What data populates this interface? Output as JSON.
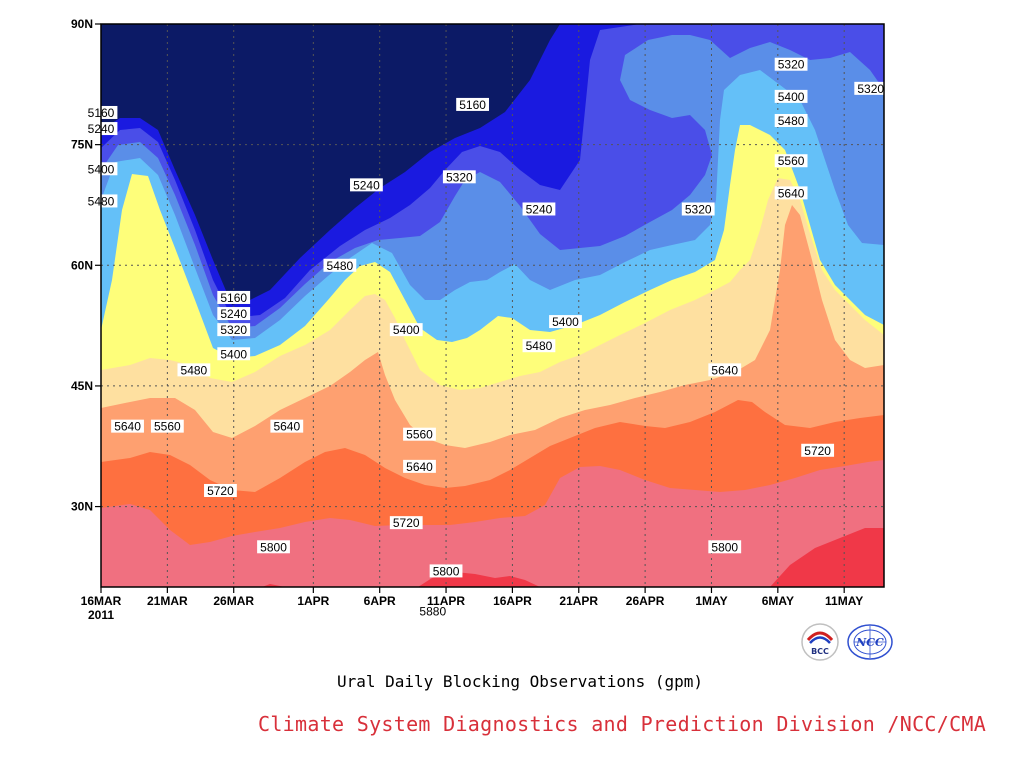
{
  "chart_data": {
    "type": "heatmap",
    "subtype": "time-latitude filled contour",
    "title": "Ural Daily Blocking Observations (gpm)",
    "x_ticks": [
      "16MAR",
      "21MAR",
      "26MAR",
      "1APR",
      "6APR",
      "11APR",
      "16APR",
      "21APR",
      "26APR",
      "1MAY",
      "6MAY",
      "11MAY"
    ],
    "x_year_label": "2011",
    "y_ticks": [
      "90N",
      "75N",
      "60N",
      "45N",
      "30N"
    ],
    "ylim": [
      20,
      90
    ],
    "xlim": [
      "2011-03-16",
      "2011-05-14"
    ],
    "grid": true,
    "contour_levels": [
      5160,
      5240,
      5320,
      5400,
      5480,
      5560,
      5640,
      5720,
      5800,
      5880
    ],
    "colors": [
      "#0c1a66",
      "#1a1ae0",
      "#4a4ee8",
      "#5a8ee8",
      "#64c0f8",
      "#fefe7a",
      "#fee0a0",
      "#fea070",
      "#fe7040",
      "#f07080",
      "#f03848"
    ],
    "contour_labels": [
      {
        "value": "5160",
        "date": "2011-03-16",
        "lat": 79
      },
      {
        "value": "5240",
        "date": "2011-03-16",
        "lat": 77
      },
      {
        "value": "5400",
        "date": "2011-03-16",
        "lat": 72
      },
      {
        "value": "5480",
        "date": "2011-03-16",
        "lat": 68
      },
      {
        "value": "5640",
        "date": "2011-03-18",
        "lat": 40
      },
      {
        "value": "5160",
        "date": "2011-03-26",
        "lat": 56
      },
      {
        "value": "5240",
        "date": "2011-03-26",
        "lat": 54
      },
      {
        "value": "5320",
        "date": "2011-03-26",
        "lat": 52
      },
      {
        "value": "5400",
        "date": "2011-03-26",
        "lat": 49
      },
      {
        "value": "5480",
        "date": "2011-03-23",
        "lat": 47
      },
      {
        "value": "5560",
        "date": "2011-03-21",
        "lat": 40
      },
      {
        "value": "5640",
        "date": "2011-03-30",
        "lat": 40
      },
      {
        "value": "5720",
        "date": "2011-03-25",
        "lat": 32
      },
      {
        "value": "5800",
        "date": "2011-03-29",
        "lat": 25
      },
      {
        "value": "5480",
        "date": "2011-04-03",
        "lat": 60
      },
      {
        "value": "5240",
        "date": "2011-04-05",
        "lat": 70
      },
      {
        "value": "5160",
        "date": "2011-04-13",
        "lat": 80
      },
      {
        "value": "5320",
        "date": "2011-04-12",
        "lat": 71
      },
      {
        "value": "5240",
        "date": "2011-04-18",
        "lat": 67
      },
      {
        "value": "5400",
        "date": "2011-04-08",
        "lat": 52
      },
      {
        "value": "5560",
        "date": "2011-04-09",
        "lat": 39
      },
      {
        "value": "5640",
        "date": "2011-04-09",
        "lat": 35
      },
      {
        "value": "5720",
        "date": "2011-04-08",
        "lat": 28
      },
      {
        "value": "5800",
        "date": "2011-04-11",
        "lat": 22
      },
      {
        "value": "5880",
        "date": "2011-04-10",
        "lat": 17
      },
      {
        "value": "5480",
        "date": "2011-04-18",
        "lat": 50
      },
      {
        "value": "5400",
        "date": "2011-04-20",
        "lat": 53
      },
      {
        "value": "5320",
        "date": "2011-04-30",
        "lat": 67
      },
      {
        "value": "5640",
        "date": "2011-05-02",
        "lat": 47
      },
      {
        "value": "5800",
        "date": "2011-05-02",
        "lat": 25
      },
      {
        "value": "5720",
        "date": "2011-05-09",
        "lat": 37
      },
      {
        "value": "5320",
        "date": "2011-05-07",
        "lat": 85
      },
      {
        "value": "5400",
        "date": "2011-05-07",
        "lat": 81
      },
      {
        "value": "5480",
        "date": "2011-05-07",
        "lat": 78
      },
      {
        "value": "5560",
        "date": "2011-05-07",
        "lat": 73
      },
      {
        "value": "5640",
        "date": "2011-05-07",
        "lat": 69
      },
      {
        "value": "5320",
        "date": "2011-05-13",
        "lat": 82
      }
    ]
  },
  "footer": {
    "subtitle": "Ural Daily Blocking Observations (gpm)",
    "credit": "Climate System Diagnostics and Prediction Division /NCC/CMA",
    "logo_left_text": "BCC",
    "logo_right_text": "NCC"
  }
}
